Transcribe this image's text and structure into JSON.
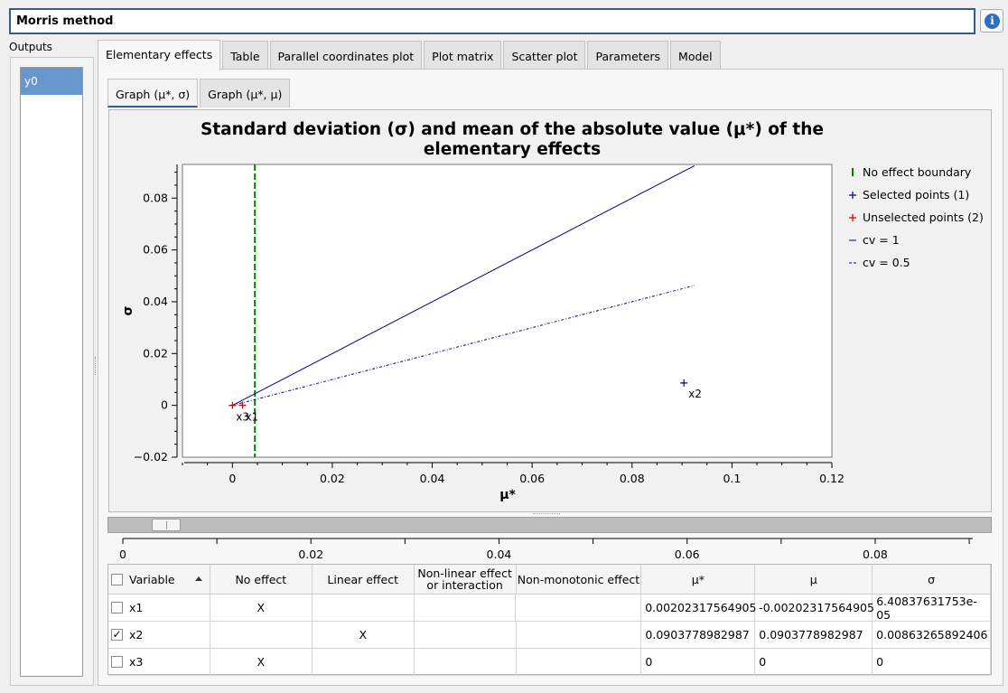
{
  "window": {
    "title": "Morris method"
  },
  "outputs": {
    "label": "Outputs",
    "items": [
      "y0"
    ]
  },
  "tabs": [
    "Elementary effects",
    "Table",
    "Parallel coordinates plot",
    "Plot matrix",
    "Scatter plot",
    "Parameters",
    "Model"
  ],
  "active_tab": "Elementary effects",
  "subtabs": [
    "Graph (μ*, σ)",
    "Graph (μ*, μ)"
  ],
  "active_subtab": "Graph (μ*, σ)",
  "chart_data": {
    "type": "scatter",
    "title": "Standard deviation (σ) and mean of the absolute value (μ*) of the elementary effects",
    "title_lines": [
      "Standard deviation (σ) and mean of the absolute value (μ*) of the",
      "elementary effects"
    ],
    "xlabel": "μ*",
    "ylabel": "σ",
    "xlim": [
      -0.01,
      0.12
    ],
    "ylim": [
      -0.02,
      0.093
    ],
    "xticks": [
      0,
      0.02,
      0.04,
      0.06,
      0.08,
      0.1,
      0.12
    ],
    "xtick_labels": [
      "0",
      "0.02",
      "0.04",
      "0.06",
      "0.08",
      "0.1",
      "0.12"
    ],
    "yticks": [
      -0.02,
      0,
      0.02,
      0.04,
      0.06,
      0.08
    ],
    "ytick_labels": [
      "−0.02",
      "0",
      "0.02",
      "0.04",
      "0.06",
      "0.08"
    ],
    "legend_position": "right",
    "series": [
      {
        "name": "No effect boundary",
        "kind": "vline",
        "x": 0.0045,
        "color": "#008000"
      },
      {
        "name": "Selected points (1)",
        "kind": "points",
        "color": "#00008b",
        "points": [
          {
            "label": "x2",
            "x": 0.0903778982987,
            "y": 0.00863265892406
          }
        ]
      },
      {
        "name": "Unselected points (2)",
        "kind": "points",
        "color": "#cc0000",
        "points": [
          {
            "label": "x1",
            "x": 0.00202317564905,
            "y": 6.40837631753e-05
          },
          {
            "label": "x3",
            "x": 0,
            "y": 0
          }
        ]
      },
      {
        "name": "cv = 1",
        "kind": "line",
        "color": "#00008b",
        "x": [
          0,
          0.0925
        ],
        "y": [
          0,
          0.0925
        ]
      },
      {
        "name": "cv = 0.5",
        "kind": "dashline",
        "color": "#00008b",
        "x": [
          0,
          0.0925
        ],
        "y": [
          0,
          0.04625
        ]
      }
    ]
  },
  "slider": {
    "value": 0.0045,
    "min": 0,
    "max": 0.0903778982987,
    "ticks": [
      0,
      0.02,
      0.04,
      0.06,
      0.08
    ],
    "tick_labels": [
      "0",
      "0.02",
      "0.04",
      "0.06",
      "0.08"
    ]
  },
  "table": {
    "headers": [
      "Variable",
      "No effect",
      "Linear effect",
      "Non-linear effect or interaction",
      "Non-monotonic effect",
      "μ*",
      "μ",
      "σ"
    ],
    "header_lines": [
      "Non-linear effect",
      "or interaction"
    ],
    "rows": [
      {
        "checked": false,
        "variable": "x1",
        "no_effect": "X",
        "linear": "",
        "nonlinear": "",
        "nonmonotonic": "",
        "mu_star": "0.00202317564905",
        "mu": "-0.00202317564905",
        "sigma": "6.40837631753e-05"
      },
      {
        "checked": true,
        "variable": "x2",
        "no_effect": "",
        "linear": "X",
        "nonlinear": "",
        "nonmonotonic": "",
        "mu_star": "0.0903778982987",
        "mu": "0.0903778982987",
        "sigma": "0.00863265892406"
      },
      {
        "checked": false,
        "variable": "x3",
        "no_effect": "X",
        "linear": "",
        "nonlinear": "",
        "nonmonotonic": "",
        "mu_star": "0",
        "mu": "0",
        "sigma": "0"
      }
    ]
  },
  "icons": {
    "info": "info-icon",
    "checkbox": "checkbox-icon",
    "sort": "sort-ascending-icon"
  },
  "colors": {
    "selection": "#6797cc",
    "accent": "#2f5f8f",
    "selected_points": "#00008b",
    "unselected_points": "#cc0000",
    "boundary": "#008000"
  }
}
